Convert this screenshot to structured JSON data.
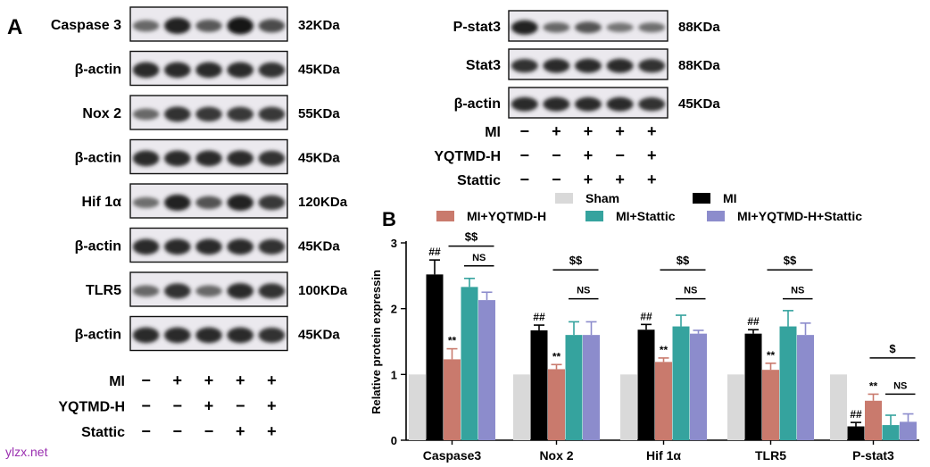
{
  "panel_a": {
    "letter": "A",
    "blots": [
      {
        "name": "Caspase 3",
        "size": "32KDa"
      },
      {
        "name": "β-actin",
        "size": "45KDa"
      },
      {
        "name": "Nox 2",
        "size": "55KDa"
      },
      {
        "name": "β-actin",
        "size": "45KDa"
      },
      {
        "name": "Hif 1α",
        "size": "120KDa"
      },
      {
        "name": "β-actin",
        "size": "45KDa"
      },
      {
        "name": "TLR5",
        "size": "100KDa"
      },
      {
        "name": "β-actin",
        "size": "45KDa"
      }
    ],
    "conditions": [
      {
        "label": "Ml",
        "signs": [
          "−",
          "+",
          "+",
          "+",
          "+"
        ]
      },
      {
        "label": "YQTMD-H",
        "signs": [
          "−",
          "−",
          "+",
          "−",
          "+"
        ]
      },
      {
        "label": "Stattic",
        "signs": [
          "−",
          "−",
          "−",
          "+",
          "+"
        ]
      }
    ]
  },
  "panel_a2": {
    "blots": [
      {
        "name": "P-stat3",
        "size": "88KDa"
      },
      {
        "name": "Stat3",
        "size": "88KDa"
      },
      {
        "name": "β-actin",
        "size": "45KDa"
      }
    ],
    "conditions": [
      {
        "label": "Ml",
        "signs": [
          "−",
          "+",
          "+",
          "+",
          "+"
        ]
      },
      {
        "label": "YQTMD-H",
        "signs": [
          "−",
          "−",
          "+",
          "−",
          "+"
        ]
      },
      {
        "label": "Stattic",
        "signs": [
          "−",
          "−",
          "+",
          "+",
          "+"
        ]
      }
    ]
  },
  "panel_b": {
    "letter": "B"
  },
  "chart_data": {
    "type": "bar",
    "ylabel": "Relative protein expressin",
    "xlabel": "",
    "ylim": [
      0,
      3
    ],
    "yticks": [
      "0",
      "1",
      "2",
      "3"
    ],
    "categories": [
      "Caspase3",
      "Nox 2",
      "Hif 1α",
      "TLR5",
      "P-stat3"
    ],
    "legend": [
      "Sham",
      "MI",
      "MI+YQTMD-H",
      "MI+Stattic",
      "MI+YQTMD-H+Stattic"
    ],
    "series": [
      {
        "name": "Sham",
        "color": "#d9d9d9",
        "values": [
          1.0,
          1.0,
          1.0,
          1.0,
          1.0
        ],
        "errors": [
          0,
          0,
          0,
          0,
          0
        ],
        "marks": [
          "",
          "",
          "",
          "",
          ""
        ]
      },
      {
        "name": "MI",
        "color": "#000000",
        "values": [
          2.52,
          1.67,
          1.68,
          1.62,
          0.21
        ],
        "errors": [
          0.22,
          0.08,
          0.08,
          0.06,
          0.06
        ],
        "marks": [
          "##",
          "##",
          "##",
          "##",
          "##"
        ]
      },
      {
        "name": "MI+YQTMD-H",
        "color": "#c97a6d",
        "values": [
          1.23,
          1.08,
          1.19,
          1.07,
          0.6
        ],
        "errors": [
          0.16,
          0.07,
          0.06,
          0.1,
          0.1
        ],
        "marks": [
          "**",
          "**",
          "**",
          "**",
          "**"
        ]
      },
      {
        "name": "MI+Stattic",
        "color": "#35a39e",
        "values": [
          2.33,
          1.6,
          1.73,
          1.73,
          0.23
        ],
        "errors": [
          0.13,
          0.2,
          0.17,
          0.24,
          0.15
        ],
        "marks": [
          "",
          "",
          "",
          "",
          ""
        ]
      },
      {
        "name": "MI+YQTMD-H+Stattic",
        "color": "#8c8ccc",
        "values": [
          2.13,
          1.6,
          1.62,
          1.6,
          0.28
        ],
        "errors": [
          0.12,
          0.2,
          0.05,
          0.18,
          0.12
        ],
        "marks": [
          "",
          "",
          "",
          "",
          ""
        ]
      }
    ],
    "comparisons": [
      {
        "top": "$$",
        "bottom": "NS"
      },
      {
        "top": "$$",
        "bottom": "NS"
      },
      {
        "top": "$$",
        "bottom": "NS"
      },
      {
        "top": "$$",
        "bottom": "NS"
      },
      {
        "top": "$",
        "bottom": "NS"
      }
    ]
  },
  "watermark": "ylzx.net"
}
